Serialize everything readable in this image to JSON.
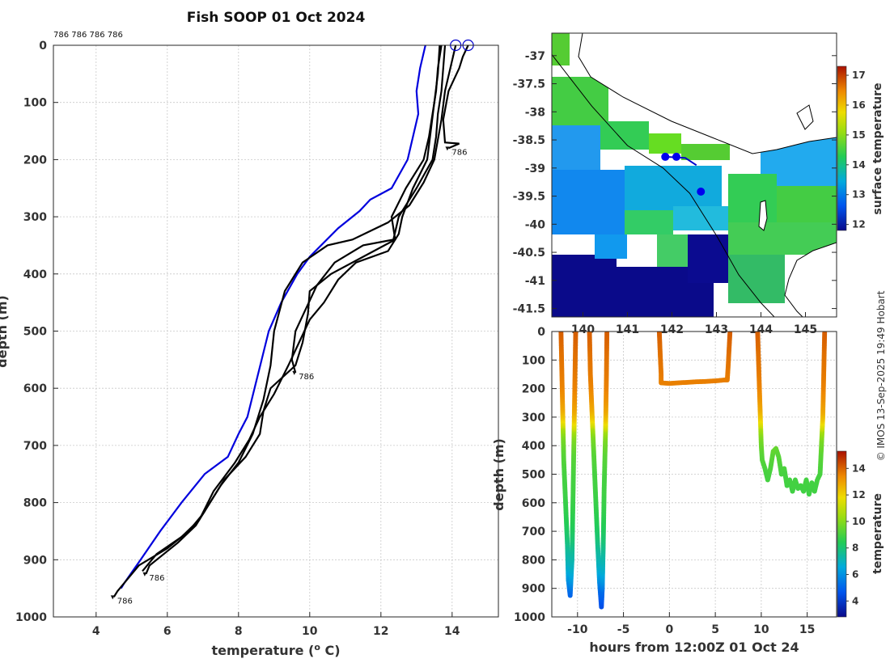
{
  "credit": "© IMOS 13-Sep-2025 19:49 Hobart",
  "chart_data": [
    {
      "type": "line",
      "title": "Fish SOOP 01 Oct 2024",
      "xlabel": "temperature (",
      "xlabel_sup": "o",
      "xlabel_end": " C)",
      "ylabel": "depth (m)",
      "xlim": [
        2.8,
        15.3
      ],
      "ylim": [
        1000,
        0
      ],
      "xticks": [
        4,
        6,
        8,
        10,
        12,
        14
      ],
      "yticks": [
        0,
        100,
        200,
        300,
        400,
        500,
        600,
        700,
        800,
        900,
        1000
      ],
      "id_header": "786 786 786 786",
      "profile_label": "786",
      "profile_label_points": [
        {
          "temp": 13.9,
          "depth": 180,
          "text": "786"
        },
        {
          "temp": 9.6,
          "depth": 573,
          "text": "786"
        },
        {
          "temp": 5.4,
          "depth": 925,
          "text": "786"
        },
        {
          "temp": 4.5,
          "depth": 965,
          "text": "786"
        }
      ],
      "surface_markers": [
        {
          "temp": 14.1,
          "depth": 0
        },
        {
          "temp": 14.45,
          "depth": 0
        }
      ],
      "climatology": {
        "name": "climatology",
        "color": "#0000dd",
        "points": [
          [
            13.25,
            0
          ],
          [
            13.1,
            40
          ],
          [
            13.0,
            80
          ],
          [
            13.05,
            120
          ],
          [
            12.9,
            160
          ],
          [
            12.75,
            200
          ],
          [
            12.3,
            250
          ],
          [
            11.7,
            270
          ],
          [
            11.4,
            290
          ],
          [
            10.8,
            320
          ],
          [
            10.0,
            370
          ],
          [
            9.65,
            400
          ],
          [
            9.2,
            450
          ],
          [
            8.85,
            500
          ],
          [
            8.65,
            550
          ],
          [
            8.45,
            600
          ],
          [
            8.25,
            650
          ],
          [
            8.0,
            680
          ],
          [
            7.7,
            720
          ],
          [
            7.05,
            750
          ],
          [
            6.4,
            800
          ],
          [
            5.8,
            850
          ],
          [
            5.25,
            900
          ],
          [
            4.8,
            940
          ],
          [
            4.7,
            950
          ]
        ]
      },
      "series": [
        {
          "name": "profile 1",
          "points": [
            [
              13.7,
              0
            ],
            [
              13.6,
              40
            ],
            [
              13.55,
              80
            ],
            [
              13.45,
              120
            ],
            [
              13.35,
              160
            ],
            [
              13.2,
              200
            ],
            [
              12.7,
              250
            ],
            [
              12.3,
              300
            ],
            [
              12.4,
              340
            ],
            [
              11.8,
              360
            ],
            [
              10.6,
              400
            ],
            [
              10.0,
              430
            ],
            [
              9.95,
              470
            ],
            [
              9.8,
              520
            ],
            [
              9.6,
              560
            ],
            [
              8.9,
              600
            ],
            [
              8.7,
              640
            ],
            [
              8.6,
              680
            ],
            [
              8.2,
              720
            ],
            [
              7.6,
              760
            ],
            [
              7.2,
              800
            ],
            [
              6.8,
              840
            ],
            [
              6.3,
              870
            ],
            [
              5.5,
              910
            ],
            [
              5.4,
              925
            ]
          ]
        },
        {
          "name": "profile 2",
          "points": [
            [
              13.8,
              0
            ],
            [
              13.75,
              40
            ],
            [
              13.7,
              80
            ],
            [
              13.6,
              120
            ],
            [
              13.55,
              160
            ],
            [
              13.45,
              200
            ],
            [
              13.0,
              250
            ],
            [
              12.5,
              300
            ],
            [
              12.35,
              340
            ],
            [
              11.5,
              350
            ],
            [
              10.7,
              380
            ],
            [
              10.2,
              420
            ],
            [
              9.9,
              460
            ],
            [
              9.6,
              500
            ],
            [
              9.5,
              550
            ],
            [
              9.6,
              573
            ]
          ]
        },
        {
          "name": "profile 3",
          "points": [
            [
              14.45,
              0
            ],
            [
              14.3,
              20
            ],
            [
              14.2,
              40
            ],
            [
              13.9,
              80
            ],
            [
              13.75,
              130
            ],
            [
              13.8,
              170
            ],
            [
              14.2,
              172
            ],
            [
              13.9,
              180
            ]
          ]
        },
        {
          "name": "profile 4",
          "points": [
            [
              14.1,
              0
            ],
            [
              13.95,
              40
            ],
            [
              13.8,
              80
            ],
            [
              13.7,
              130
            ],
            [
              13.5,
              200
            ],
            [
              13.2,
              240
            ],
            [
              12.8,
              280
            ],
            [
              12.2,
              310
            ],
            [
              11.2,
              340
            ],
            [
              10.5,
              350
            ],
            [
              9.8,
              380
            ],
            [
              9.3,
              430
            ],
            [
              9.0,
              500
            ],
            [
              8.9,
              560
            ],
            [
              8.7,
              620
            ],
            [
              8.4,
              680
            ],
            [
              8.0,
              730
            ],
            [
              7.5,
              770
            ],
            [
              7.0,
              820
            ],
            [
              6.6,
              850
            ],
            [
              6.0,
              880
            ],
            [
              5.2,
              910
            ],
            [
              4.8,
              940
            ],
            [
              4.6,
              955
            ],
            [
              4.5,
              965
            ]
          ]
        },
        {
          "name": "profile 5",
          "points": [
            [
              13.65,
              0
            ],
            [
              13.6,
              50
            ],
            [
              13.5,
              100
            ],
            [
              13.4,
              150
            ],
            [
              13.3,
              200
            ],
            [
              12.9,
              250
            ],
            [
              12.6,
              300
            ],
            [
              12.5,
              330
            ],
            [
              12.2,
              360
            ],
            [
              11.3,
              380
            ],
            [
              10.8,
              410
            ],
            [
              10.4,
              450
            ],
            [
              10.0,
              480
            ],
            [
              9.7,
              520
            ],
            [
              9.4,
              560
            ],
            [
              9.0,
              610
            ],
            [
              8.6,
              650
            ],
            [
              8.3,
              690
            ],
            [
              7.9,
              730
            ],
            [
              7.3,
              780
            ],
            [
              6.9,
              830
            ],
            [
              6.4,
              860
            ],
            [
              5.7,
              890
            ],
            [
              5.3,
              920
            ]
          ]
        }
      ]
    },
    {
      "type": "heatmap",
      "subtype": "map",
      "xlim": [
        139.3,
        145.7
      ],
      "ylim": [
        -41.65,
        -36.6
      ],
      "xticks": [
        140,
        141,
        142,
        143,
        144,
        145
      ],
      "yticks": [
        -37,
        -37.5,
        -38,
        -38.5,
        -39,
        -39.5,
        -40,
        -40.5,
        -41,
        -41.5
      ],
      "colorbar_label": "surface temperature",
      "colorbar_ticks": [
        12,
        13,
        14,
        15,
        16,
        17
      ],
      "colorbar_range": [
        11.8,
        17.3
      ],
      "ship_track": [
        [
          139.3,
          -36.98
        ],
        [
          140.2,
          -37.9
        ],
        [
          141.0,
          -38.6
        ],
        [
          141.8,
          -39.0
        ],
        [
          142.4,
          -39.45
        ],
        [
          143.0,
          -40.2
        ],
        [
          143.5,
          -40.9
        ],
        [
          144.0,
          -41.4
        ],
        [
          144.3,
          -41.65
        ]
      ],
      "float_track": [
        [
          141.85,
          -38.8
        ],
        [
          142.3,
          -38.82
        ],
        [
          142.55,
          -38.95
        ]
      ],
      "float_positions": [
        [
          141.85,
          -38.8
        ],
        [
          142.1,
          -38.8
        ],
        [
          142.65,
          -39.42
        ]
      ]
    },
    {
      "type": "scatter",
      "xlabel": "hours from 12:00Z 01 Oct 24",
      "ylabel": "depth (m)",
      "xlim": [
        -12.8,
        18.2
      ],
      "ylim": [
        1000,
        0
      ],
      "xticks": [
        -10,
        -5,
        0,
        5,
        10,
        15
      ],
      "yticks": [
        0,
        100,
        200,
        300,
        400,
        500,
        600,
        700,
        800,
        900,
        1000
      ],
      "colorbar_label": "temperature",
      "colorbar_ticks": [
        4,
        6,
        8,
        10,
        12,
        14
      ],
      "colorbar_range": [
        2.8,
        15.3
      ],
      "segments": [
        {
          "name": "dive 1",
          "points": [
            [
              -11.8,
              0
            ],
            [
              -11.7,
              150
            ],
            [
              -11.6,
              300
            ],
            [
              -11.5,
              450
            ],
            [
              -11.3,
              600
            ],
            [
              -11.1,
              750
            ],
            [
              -11.0,
              870
            ],
            [
              -10.8,
              925
            ],
            [
              -10.6,
              800
            ],
            [
              -10.5,
              600
            ],
            [
              -10.4,
              400
            ],
            [
              -10.3,
              200
            ],
            [
              -10.2,
              0
            ]
          ]
        },
        {
          "name": "dive 2",
          "points": [
            [
              -8.7,
              0
            ],
            [
              -8.6,
              150
            ],
            [
              -8.4,
              300
            ],
            [
              -8.2,
              450
            ],
            [
              -8.0,
              600
            ],
            [
              -7.8,
              750
            ],
            [
              -7.6,
              880
            ],
            [
              -7.4,
              965
            ],
            [
              -7.3,
              900
            ],
            [
              -7.2,
              750
            ],
            [
              -7.1,
              550
            ],
            [
              -6.95,
              350
            ],
            [
              -6.85,
              150
            ],
            [
              -6.8,
              0
            ]
          ]
        },
        {
          "name": "dive 3",
          "points": [
            [
              -1.1,
              0
            ],
            [
              -1.0,
              80
            ],
            [
              -0.9,
              150
            ],
            [
              -0.9,
              180
            ],
            [
              0,
              182
            ],
            [
              1,
              180
            ],
            [
              2,
              178
            ],
            [
              3,
              176
            ],
            [
              4,
              175
            ],
            [
              5,
              173
            ],
            [
              6,
              170
            ],
            [
              6.3,
              170
            ],
            [
              6.4,
              120
            ],
            [
              6.5,
              60
            ],
            [
              6.6,
              0
            ]
          ]
        },
        {
          "name": "dive 4",
          "points": [
            [
              9.6,
              0
            ],
            [
              9.7,
              100
            ],
            [
              9.8,
              200
            ],
            [
              9.9,
              300
            ],
            [
              10.0,
              400
            ],
            [
              10.1,
              450
            ],
            [
              10.4,
              480
            ],
            [
              10.7,
              520
            ],
            [
              11.0,
              480
            ],
            [
              11.3,
              420
            ],
            [
              11.6,
              410
            ],
            [
              11.9,
              440
            ],
            [
              12.2,
              500
            ],
            [
              12.5,
              480
            ],
            [
              12.8,
              540
            ],
            [
              13.1,
              520
            ],
            [
              13.4,
              560
            ],
            [
              13.7,
              520
            ],
            [
              14.0,
              550
            ],
            [
              14.3,
              540
            ],
            [
              14.6,
              560
            ],
            [
              14.9,
              520
            ],
            [
              15.2,
              570
            ],
            [
              15.5,
              530
            ],
            [
              15.8,
              560
            ],
            [
              16.1,
              520
            ],
            [
              16.4,
              500
            ],
            [
              16.7,
              300
            ],
            [
              16.8,
              150
            ],
            [
              16.9,
              0
            ]
          ]
        }
      ]
    }
  ]
}
